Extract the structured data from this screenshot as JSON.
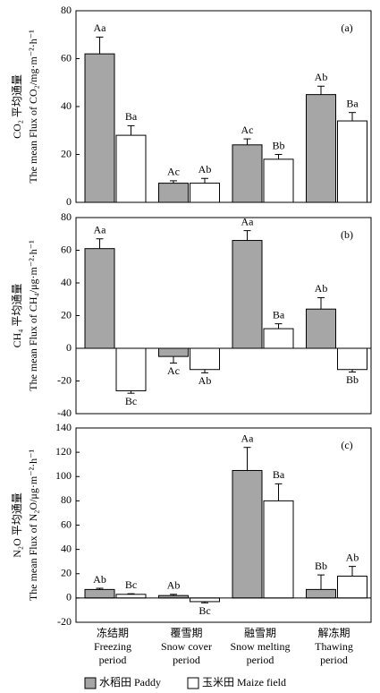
{
  "chart_data": [
    {
      "type": "bar",
      "panel_label": "(a)",
      "ylabel": [
        "CO₂ 平均通量",
        "The mean Flux of CO₂/mg·m⁻²·h⁻¹"
      ],
      "ylim": [
        0,
        80
      ],
      "yticks": [
        0,
        20,
        40,
        60,
        80
      ],
      "series": [
        {
          "color": "#a6a6a6",
          "values": [
            62,
            8,
            24,
            45
          ],
          "errors": [
            7,
            1,
            2.5,
            3.5
          ],
          "letters": [
            "Aa",
            "Ac",
            "Ac",
            "Ab"
          ]
        },
        {
          "color": "#ffffff",
          "values": [
            28,
            8,
            18,
            34
          ],
          "errors": [
            4,
            2,
            2,
            3.5
          ],
          "letters": [
            "Ba",
            "Ab",
            "Bb",
            "Ba"
          ]
        }
      ]
    },
    {
      "type": "bar",
      "panel_label": "(b)",
      "ylabel": [
        "CH₄ 平均通量",
        "The mean Flux of CH₄/μg·m⁻²·h⁻¹"
      ],
      "ylim": [
        -40,
        80
      ],
      "yticks": [
        -40,
        -20,
        0,
        20,
        40,
        60,
        80
      ],
      "series": [
        {
          "color": "#a6a6a6",
          "values": [
            61,
            -5,
            66,
            24
          ],
          "errors": [
            6,
            4,
            6,
            7
          ],
          "letters": [
            "Aa",
            "Ac",
            "Aa",
            "Ab"
          ]
        },
        {
          "color": "#ffffff",
          "values": [
            -26,
            -13,
            12,
            -13
          ],
          "errors": [
            1.5,
            2,
            3,
            1.5
          ],
          "letters": [
            "Bc",
            "Ab",
            "Ba",
            "Bb"
          ]
        }
      ]
    },
    {
      "type": "bar",
      "panel_label": "(c)",
      "ylabel": [
        "N₂O 平均通量",
        "The mean Flux of N₂O/μg·m⁻²·h⁻¹"
      ],
      "ylim": [
        -20,
        140
      ],
      "yticks": [
        -20,
        0,
        20,
        40,
        60,
        80,
        100,
        120,
        140
      ],
      "categories": [
        "冻结期\nFreezing\nperiod",
        "覆雪期\nSnow cover\nperiod",
        "融雪期\nSnow melting\nperiod",
        "解冻期\nThawing\nperiod"
      ],
      "series": [
        {
          "name": "水稻田 Paddy",
          "color": "#a6a6a6",
          "values": [
            7,
            2,
            105,
            7
          ],
          "errors": [
            1,
            1,
            19,
            12
          ],
          "letters": [
            "Ab",
            "Ab",
            "Aa",
            "Bb"
          ]
        },
        {
          "name": "玉米田 Maize field",
          "color": "#ffffff",
          "values": [
            3,
            -3,
            80,
            18
          ],
          "errors": [
            0.5,
            1,
            14,
            8
          ],
          "letters": [
            "Bc",
            "Bc",
            "Ba",
            "Ab"
          ]
        }
      ]
    }
  ]
}
